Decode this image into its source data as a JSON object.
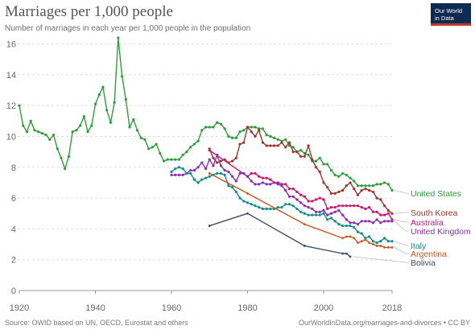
{
  "header": {
    "title": "Marriages per 1,000 people",
    "subtitle": "Number of marriages in each year per 1,000 people in the population",
    "logo_line1": "Our World",
    "logo_line2": "in Data"
  },
  "footer": {
    "source": "Source: OWID based on UN, OECD, Eurostat and others",
    "url": "OurWorldInData.org/marriages-and-divorces • CC BY"
  },
  "chart_data": {
    "type": "line",
    "title": "Marriages per 1,000 people",
    "subtitle": "Number of marriages in each year per 1,000 people in the population",
    "xlabel": "",
    "ylabel": "",
    "xlim": [
      1920,
      2018
    ],
    "ylim": [
      0,
      16.5
    ],
    "x_ticks": [
      "1920",
      "1940",
      "1960",
      "1980",
      "2000",
      "2018"
    ],
    "y_ticks": [
      "0",
      "2",
      "4",
      "6",
      "8",
      "10",
      "12",
      "14",
      "16"
    ],
    "grid": "horizontal dashed",
    "legend": "right, labels at line ends",
    "series": [
      {
        "name": "United States",
        "color": "#2e9e3a",
        "markers": true,
        "x": [
          1920,
          1921,
          1922,
          1923,
          1924,
          1925,
          1926,
          1927,
          1928,
          1929,
          1930,
          1931,
          1932,
          1933,
          1934,
          1935,
          1936,
          1937,
          1938,
          1939,
          1940,
          1941,
          1942,
          1943,
          1944,
          1945,
          1946,
          1947,
          1948,
          1949,
          1950,
          1951,
          1952,
          1953,
          1954,
          1955,
          1956,
          1957,
          1958,
          1959,
          1960,
          1961,
          1962,
          1963,
          1964,
          1965,
          1966,
          1967,
          1968,
          1969,
          1970,
          1971,
          1972,
          1973,
          1974,
          1975,
          1976,
          1977,
          1978,
          1979,
          1980,
          1981,
          1982,
          1983,
          1984,
          1985,
          1986,
          1987,
          1988,
          1989,
          1990,
          1991,
          1992,
          1993,
          1994,
          1995,
          1996,
          1997,
          1998,
          1999,
          2000,
          2001,
          2002,
          2003,
          2004,
          2005,
          2006,
          2007,
          2008,
          2009,
          2010,
          2011,
          2012,
          2013,
          2014,
          2015,
          2016,
          2017,
          2018
        ],
        "y": [
          12.0,
          10.7,
          10.3,
          11.0,
          10.4,
          10.3,
          10.2,
          10.1,
          9.8,
          10.1,
          9.2,
          8.6,
          7.9,
          8.7,
          10.3,
          10.4,
          10.7,
          11.3,
          10.3,
          10.7,
          12.1,
          12.7,
          13.2,
          11.7,
          10.9,
          12.2,
          16.4,
          13.9,
          12.4,
          10.6,
          11.1,
          10.4,
          9.9,
          9.8,
          9.2,
          9.3,
          9.5,
          8.9,
          8.4,
          8.5,
          8.5,
          8.5,
          8.5,
          8.8,
          9.0,
          9.3,
          9.5,
          9.7,
          10.4,
          10.6,
          10.6,
          10.6,
          10.9,
          10.8,
          10.5,
          10.0,
          9.9,
          9.9,
          10.3,
          10.4,
          10.6,
          10.6,
          10.6,
          10.5,
          10.5,
          10.1,
          10.0,
          9.9,
          9.8,
          9.7,
          9.8,
          9.4,
          9.3,
          9.0,
          9.1,
          8.9,
          8.8,
          8.4,
          8.4,
          8.6,
          8.2,
          8.2,
          7.8,
          7.5,
          7.4,
          7.6,
          7.5,
          7.3,
          7.1,
          6.8,
          6.8,
          6.8,
          6.8,
          6.8,
          6.9,
          6.9,
          7.0,
          6.9,
          6.5
        ]
      },
      {
        "name": "South Korea",
        "color": "#a0352b",
        "markers": true,
        "x": [
          1970,
          1971,
          1972,
          1973,
          1974,
          1975,
          1976,
          1977,
          1978,
          1979,
          1980,
          1981,
          1982,
          1983,
          1984,
          1985,
          1986,
          1987,
          1988,
          1989,
          1990,
          1991,
          1992,
          1993,
          1994,
          1995,
          1996,
          1997,
          1998,
          1999,
          2000,
          2001,
          2002,
          2003,
          2004,
          2005,
          2006,
          2007,
          2008,
          2009,
          2010,
          2011,
          2012,
          2013,
          2014,
          2015,
          2016,
          2017,
          2018
        ],
        "y": [
          9.2,
          8.6,
          8.3,
          8.4,
          8.5,
          8.3,
          8.4,
          8.6,
          9.5,
          9.6,
          10.6,
          10.3,
          10.0,
          10.4,
          9.6,
          9.4,
          9.4,
          9.4,
          9.4,
          9.6,
          9.3,
          9.6,
          9.0,
          9.0,
          8.7,
          8.7,
          9.4,
          8.5,
          8.0,
          7.7,
          7.0,
          6.7,
          6.3,
          6.3,
          6.4,
          6.5,
          6.8,
          7.0,
          6.6,
          6.2,
          6.5,
          6.6,
          6.5,
          6.4,
          6.0,
          5.9,
          5.5,
          5.2,
          5.0
        ]
      },
      {
        "name": "Australia",
        "color": "#d6136b",
        "markers": true,
        "x": [
          1970,
          1980,
          1981,
          1982,
          1983,
          1984,
          1985,
          1986,
          1987,
          1988,
          1989,
          1990,
          1991,
          1992,
          1993,
          1994,
          1995,
          1996,
          1997,
          1998,
          1999,
          2000,
          2001,
          2002,
          2003,
          2004,
          2005,
          2006,
          2007,
          2008,
          2009,
          2010,
          2011,
          2012,
          2013,
          2014,
          2015,
          2016,
          2017,
          2018
        ],
        "y": [
          9.1,
          7.4,
          7.6,
          7.6,
          7.4,
          7.3,
          7.3,
          7.2,
          7.0,
          7.0,
          6.9,
          6.9,
          6.6,
          6.6,
          6.4,
          6.2,
          6.1,
          5.8,
          5.8,
          5.9,
          6.0,
          5.9,
          5.3,
          5.4,
          5.4,
          5.5,
          5.5,
          5.5,
          5.5,
          5.5,
          5.5,
          5.4,
          5.3,
          5.4,
          5.1,
          5.1,
          4.9,
          4.9,
          5.0,
          4.6
        ]
      },
      {
        "name": "United Kingdom",
        "color": "#8a2fb5",
        "markers": true,
        "x": [
          1960,
          1961,
          1962,
          1963,
          1964,
          1965,
          1966,
          1967,
          1968,
          1969,
          1970,
          1971,
          1972,
          1973,
          1974,
          1975,
          1976,
          1977,
          1978,
          1979,
          1980,
          1981,
          1982,
          1983,
          1984,
          1985,
          1986,
          1987,
          1988,
          1989,
          1990,
          1991,
          1992,
          1993,
          1994,
          1995,
          1996,
          1997,
          1998,
          1999,
          2000,
          2001,
          2002,
          2003,
          2004,
          2005,
          2006,
          2007,
          2008,
          2009,
          2010,
          2011,
          2012,
          2013,
          2014,
          2015,
          2016,
          2017,
          2018
        ],
        "y": [
          7.5,
          7.5,
          7.5,
          7.5,
          7.6,
          7.8,
          7.8,
          8.0,
          8.3,
          7.9,
          8.5,
          8.1,
          8.8,
          8.1,
          7.8,
          7.7,
          7.4,
          7.1,
          7.6,
          7.6,
          7.4,
          7.1,
          6.9,
          6.9,
          7.0,
          6.9,
          6.9,
          7.0,
          6.9,
          6.8,
          6.5,
          6.1,
          6.1,
          5.9,
          5.7,
          5.5,
          5.4,
          5.3,
          5.1,
          5.1,
          5.2,
          4.9,
          5.0,
          5.1,
          5.2,
          4.9,
          4.6,
          4.4,
          4.4,
          4.3,
          4.5,
          4.5,
          4.5,
          4.4,
          4.6,
          4.4,
          4.5,
          4.5,
          4.5
        ]
      },
      {
        "name": "Italy",
        "color": "#148c8c",
        "markers": true,
        "x": [
          1960,
          1961,
          1962,
          1963,
          1964,
          1965,
          1966,
          1967,
          1968,
          1969,
          1970,
          1971,
          1972,
          1973,
          1974,
          1975,
          1976,
          1977,
          1978,
          1979,
          1980,
          1981,
          1982,
          1983,
          1984,
          1985,
          1986,
          1987,
          1988,
          1989,
          1990,
          1991,
          1992,
          1993,
          1994,
          1995,
          1996,
          1997,
          1998,
          1999,
          2000,
          2001,
          2002,
          2003,
          2004,
          2005,
          2006,
          2007,
          2008,
          2009,
          2010,
          2011,
          2012,
          2013,
          2014,
          2015,
          2016,
          2017,
          2018
        ],
        "y": [
          7.7,
          7.9,
          8.0,
          7.9,
          7.6,
          7.6,
          7.2,
          7.0,
          7.2,
          7.3,
          7.4,
          7.5,
          7.6,
          7.6,
          7.5,
          6.8,
          6.7,
          6.4,
          6.0,
          5.8,
          5.7,
          5.6,
          5.5,
          5.4,
          5.3,
          5.3,
          5.3,
          5.3,
          5.4,
          5.4,
          5.6,
          5.6,
          5.5,
          5.3,
          5.1,
          5.0,
          4.9,
          4.9,
          4.9,
          4.9,
          5.0,
          4.6,
          4.7,
          4.5,
          4.3,
          4.2,
          4.2,
          4.2,
          4.1,
          3.8,
          3.7,
          3.4,
          3.5,
          3.2,
          3.1,
          3.2,
          3.4,
          3.2,
          3.2
        ]
      },
      {
        "name": "Argentina",
        "color": "#c9561d",
        "markers": false,
        "x": [
          1970,
          1980,
          1995,
          2005,
          2006,
          2007,
          2008,
          2009,
          2010,
          2011,
          2012,
          2013,
          2014,
          2015,
          2016,
          2017,
          2018
        ],
        "y": [
          7.6,
          6.3,
          4.3,
          3.4,
          3.5,
          3.5,
          3.4,
          3.1,
          3.2,
          3.3,
          3.1,
          3.0,
          2.9,
          2.9,
          2.8,
          2.8,
          2.8
        ]
      },
      {
        "name": "Bolivia",
        "color": "#3c4a6e",
        "markers": false,
        "x": [
          1970,
          1980,
          1995,
          2005,
          2006,
          2007
        ],
        "y": [
          4.2,
          5.0,
          2.9,
          2.4,
          2.4,
          2.2
        ]
      }
    ]
  }
}
